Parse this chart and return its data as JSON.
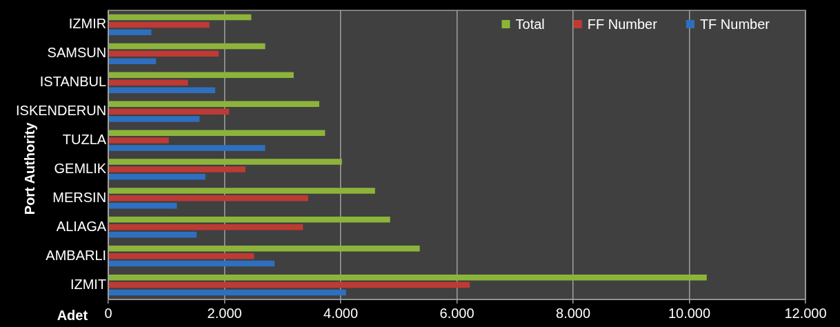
{
  "chart_data": {
    "type": "bar",
    "orientation": "horizontal",
    "xlabel": "Adet",
    "ylabel": "Port Authority",
    "categories": [
      "IZMIR",
      "SAMSUN",
      "ISTANBUL",
      "ISKENDERUN",
      "TUZLA",
      "GEMLIK",
      "MERSIN",
      "ALIAGA",
      "AMBARLI",
      "IZMIT"
    ],
    "series": [
      {
        "name": "Total",
        "color": "#8db43a",
        "values": [
          2460,
          2700,
          3190,
          3630,
          3730,
          4020,
          4590,
          4850,
          5360,
          10300
        ]
      },
      {
        "name": "FF Number",
        "color": "#be3a34",
        "values": [
          1740,
          1900,
          1370,
          2080,
          1040,
          2360,
          3440,
          3350,
          2510,
          6220
        ]
      },
      {
        "name": "TF Number",
        "color": "#2e6fbf",
        "values": [
          740,
          820,
          1840,
          1570,
          2700,
          1670,
          1180,
          1520,
          2860,
          4090
        ]
      }
    ],
    "xlim": [
      0,
      12000
    ],
    "xticks": [
      0,
      {
        "value": 2000,
        "label": "2.000"
      },
      {
        "value": 4000,
        "label": "4.000"
      },
      {
        "value": 6000,
        "label": "6.000"
      },
      {
        "value": 8000,
        "label": "8.000"
      },
      {
        "value": 10000,
        "label": "10.000"
      },
      {
        "value": 12000,
        "label": "12.000"
      }
    ],
    "grid": "x",
    "legend": "top right"
  }
}
